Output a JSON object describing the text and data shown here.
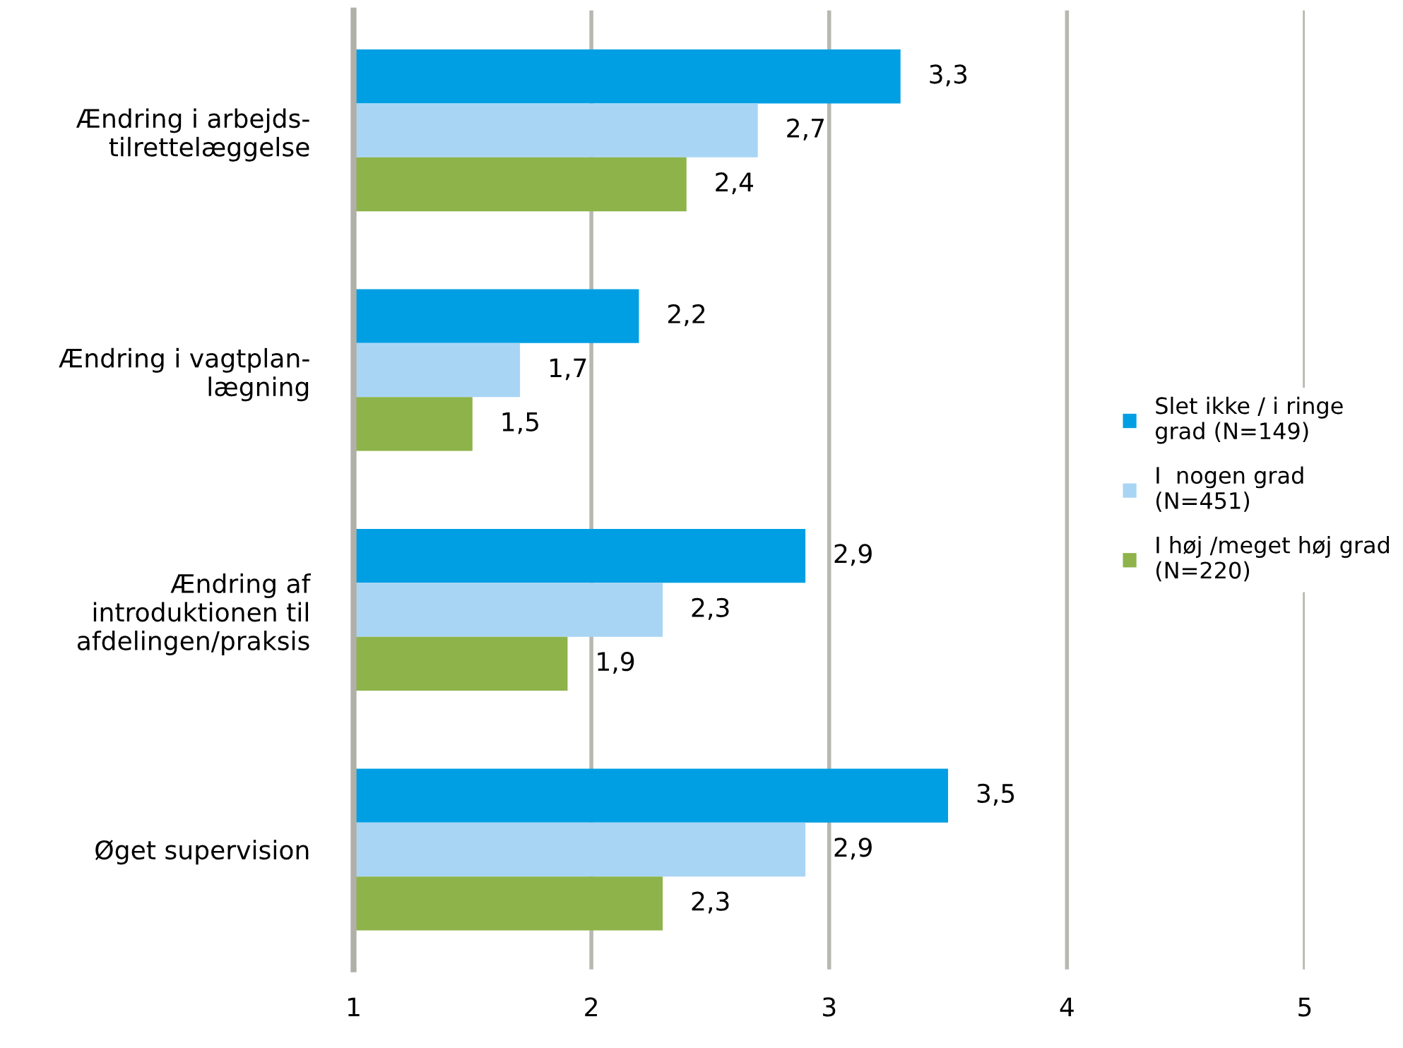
{
  "chart_data": {
    "type": "bar",
    "orientation": "horizontal",
    "categories": [
      "Ændring i arbejds-\ntilrettelæggelse",
      "Ændring i vagtplan-\nlægning",
      "Ændring af\nintroduktionen til\nafdelingen/praksis",
      "Øget supervision"
    ],
    "series": [
      {
        "name": "Slet ikke / i ringe\ngrad (N=149)",
        "color": "#009fe3",
        "values": [
          3.3,
          2.2,
          2.9,
          3.5
        ],
        "value_labels": [
          "3,3",
          "2,2",
          "2,9",
          "3,5"
        ]
      },
      {
        "name": "I  nogen grad\n(N=451)",
        "color": "#a9d5f5",
        "values": [
          2.7,
          1.7,
          2.3,
          2.9
        ],
        "value_labels": [
          "2,7",
          "1,7",
          "2,3",
          "2,9"
        ]
      },
      {
        "name": "I høj /meget høj grad\n(N=220)",
        "color": "#8db34a",
        "values": [
          2.4,
          1.5,
          1.9,
          2.3
        ],
        "value_labels": [
          "2,4",
          "1,5",
          "1,9",
          "2,3"
        ]
      }
    ],
    "xlim": [
      1,
      5
    ],
    "xticks": [
      1,
      2,
      3,
      4,
      5
    ],
    "grid": "x",
    "legend": "right"
  }
}
